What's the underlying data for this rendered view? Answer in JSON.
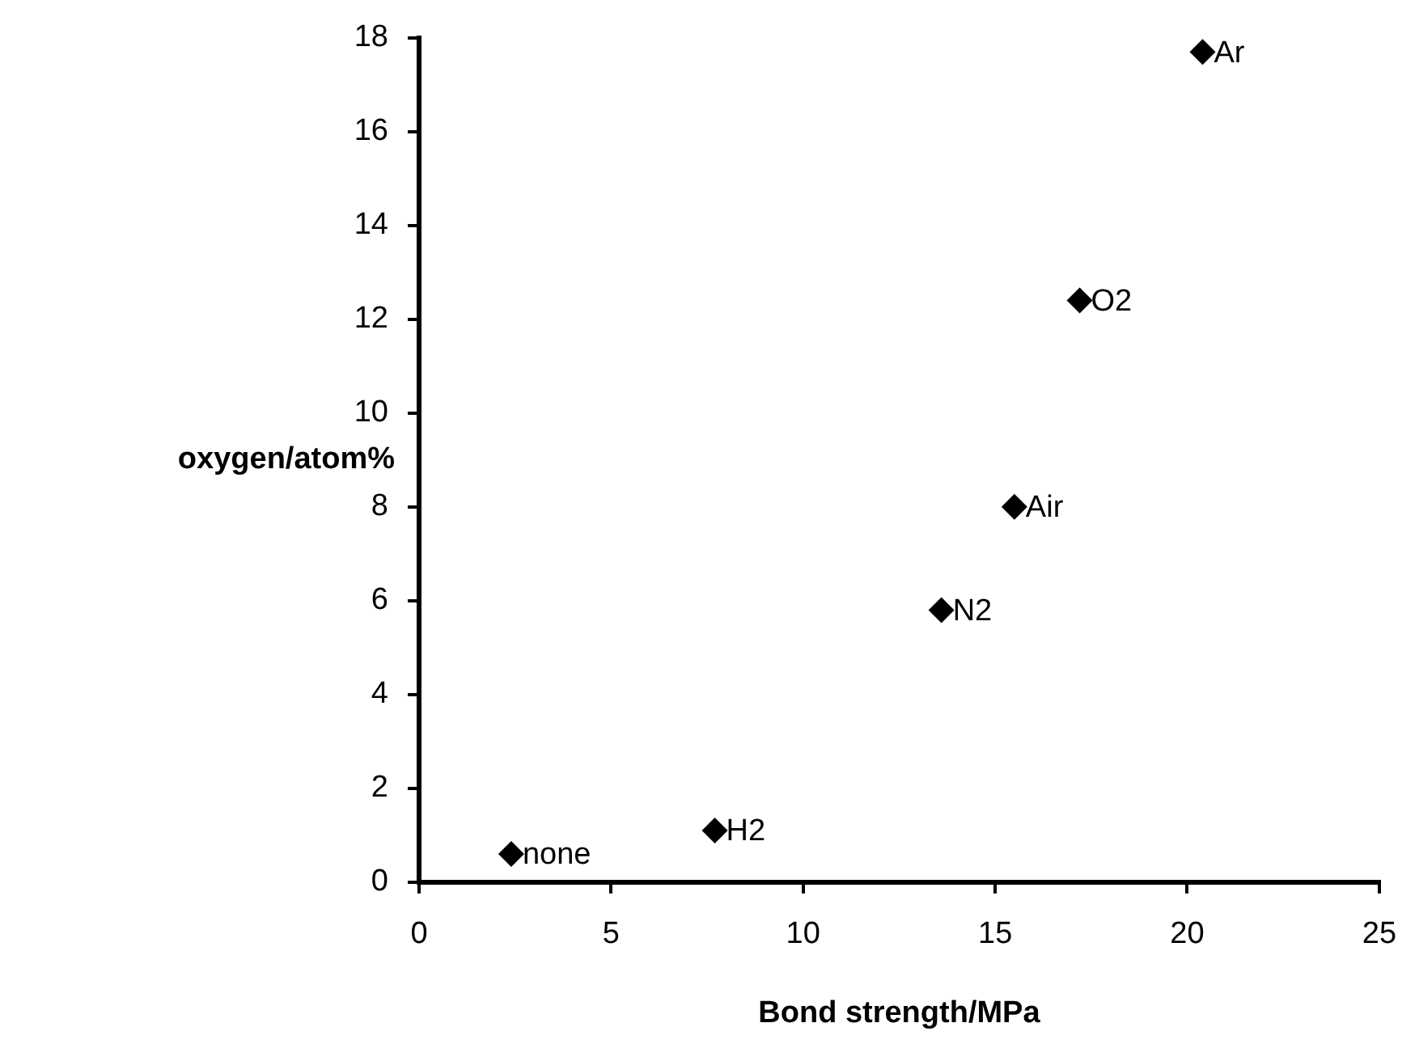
{
  "chart_data": {
    "type": "scatter",
    "xlabel": "Bond strength/MPa",
    "ylabel": "oxygen/atom%",
    "x": [
      2.4,
      7.7,
      13.6,
      15.5,
      17.2,
      20.4
    ],
    "series": [
      {
        "color": "#000000",
        "values": [
          0.6,
          1.1,
          5.8,
          8,
          12.4,
          17.7
        ]
      }
    ],
    "annotations": [
      {
        "text": "none",
        "x": 2.4,
        "y": 0.6
      },
      {
        "text": "H2",
        "x": 7.7,
        "y": 1.1
      },
      {
        "text": "N2",
        "x": 13.6,
        "y": 5.8
      },
      {
        "text": "Air",
        "x": 15.5,
        "y": 8
      },
      {
        "text": "O2",
        "x": 17.2,
        "y": 12.4
      },
      {
        "text": "Ar",
        "x": 20.4,
        "y": 17.7
      }
    ],
    "xlim": [
      0,
      25
    ],
    "xticks": [
      0,
      5,
      10,
      15,
      20,
      25
    ],
    "ylim": [
      0,
      18
    ],
    "yticks": [
      0,
      2,
      4,
      6,
      8,
      10,
      12,
      14,
      16,
      18
    ],
    "marker": "diamond",
    "grid": false,
    "legend": false
  }
}
